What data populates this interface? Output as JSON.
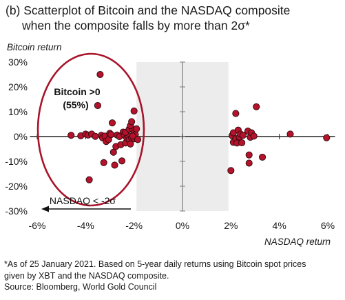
{
  "title_line1": "(b) Scatterplot of Bitcoin and the NASDAQ composite",
  "title_line2": "when the composite falls by more than 2σ*",
  "chart_data": {
    "type": "scatter",
    "ylabel": "Bitcoin return",
    "xlabel": "NASDAQ return",
    "xlim": [
      -6.3,
      6.3
    ],
    "ylim": [
      -30,
      30
    ],
    "x_ticks": [
      -6,
      -4,
      -2,
      0,
      2,
      4,
      6
    ],
    "y_ticks": [
      30,
      20,
      10,
      0,
      -10,
      -20,
      -30
    ],
    "x_tick_labels": [
      "-6%",
      "-4%",
      "-2%",
      "0%",
      "2%",
      "4%",
      "6%"
    ],
    "y_tick_labels": [
      "30%",
      "20%",
      "10%",
      "0%",
      "-10%",
      "-20%",
      "-30%"
    ],
    "shaded_band": [
      -1.9,
      1.9
    ],
    "colors": {
      "point": "#b5122b",
      "ellipse": "#a8142a",
      "band": "#ececec",
      "axis": "#7a7a7a"
    },
    "annotations": {
      "ellipse_label_line1": "Bitcoin >0",
      "ellipse_label_line2": "(55%)",
      "arrow_label": "NASDAQ < -2σ"
    },
    "points": [
      [
        -4.6,
        0.5
      ],
      [
        -4.2,
        0.3
      ],
      [
        -4.0,
        1.0
      ],
      [
        -3.9,
        0.6
      ],
      [
        -3.85,
        -17.4
      ],
      [
        -3.75,
        1.0
      ],
      [
        -3.6,
        0.1
      ],
      [
        -3.5,
        12.5
      ],
      [
        -3.4,
        25.0
      ],
      [
        -3.35,
        0.5
      ],
      [
        -3.3,
        -0.5
      ],
      [
        -3.2,
        0.2
      ],
      [
        -3.25,
        -10.5
      ],
      [
        -3.15,
        -2.0
      ],
      [
        -3.05,
        -1.2
      ],
      [
        -3.0,
        1.3
      ],
      [
        -2.95,
        0.8
      ],
      [
        -2.9,
        5.5
      ],
      [
        -2.85,
        -6.3
      ],
      [
        -2.8,
        -11.5
      ],
      [
        -2.75,
        -4.0
      ],
      [
        -2.7,
        0.6
      ],
      [
        -2.6,
        0.0
      ],
      [
        -2.55,
        -3.3
      ],
      [
        -2.5,
        -9.8
      ],
      [
        -2.45,
        1.8
      ],
      [
        -2.4,
        0.6
      ],
      [
        -2.35,
        -2.6
      ],
      [
        -2.3,
        -0.6
      ],
      [
        -2.25,
        0.4
      ],
      [
        -2.2,
        -1.2
      ],
      [
        -2.15,
        -3.0
      ],
      [
        -2.35,
        1.7
      ],
      [
        -2.2,
        3.0
      ],
      [
        -2.1,
        -0.5
      ],
      [
        -2.05,
        2.8
      ],
      [
        -2.0,
        1.5
      ],
      [
        -2.15,
        4.4
      ],
      [
        -2.1,
        6.0
      ],
      [
        -2.0,
        10.3
      ],
      [
        -1.95,
        0.8
      ],
      [
        -2.0,
        -0.9
      ],
      [
        -2.05,
        0.2
      ],
      [
        -1.9,
        3.1
      ],
      [
        -1.85,
        -1.2
      ],
      [
        2.05,
        0.4
      ],
      [
        2.1,
        -2.3
      ],
      [
        2.1,
        1.5
      ],
      [
        2.2,
        9.3
      ],
      [
        2.2,
        -0.9
      ],
      [
        2.25,
        -2.6
      ],
      [
        2.3,
        2.6
      ],
      [
        2.35,
        -0.2
      ],
      [
        2.4,
        1.0
      ],
      [
        2.45,
        -2.5
      ],
      [
        2.5,
        0.5
      ],
      [
        2.7,
        2.2
      ],
      [
        2.75,
        -7.4
      ],
      [
        2.75,
        -10.7
      ],
      [
        2.8,
        -0.3
      ],
      [
        2.85,
        1.5
      ],
      [
        2.95,
        0.2
      ],
      [
        2.0,
        -13.7
      ],
      [
        3.05,
        12.0
      ],
      [
        3.3,
        -8.3
      ],
      [
        4.45,
        1.0
      ],
      [
        5.95,
        -0.5
      ]
    ]
  },
  "footnote_line1": "*As of 25 January 2021. Based on 5-year daily returns using Bitcoin spot prices",
  "footnote_line2": "given by XBT and the NASDAQ composite.",
  "source": "Source:  Bloomberg, World Gold Council"
}
